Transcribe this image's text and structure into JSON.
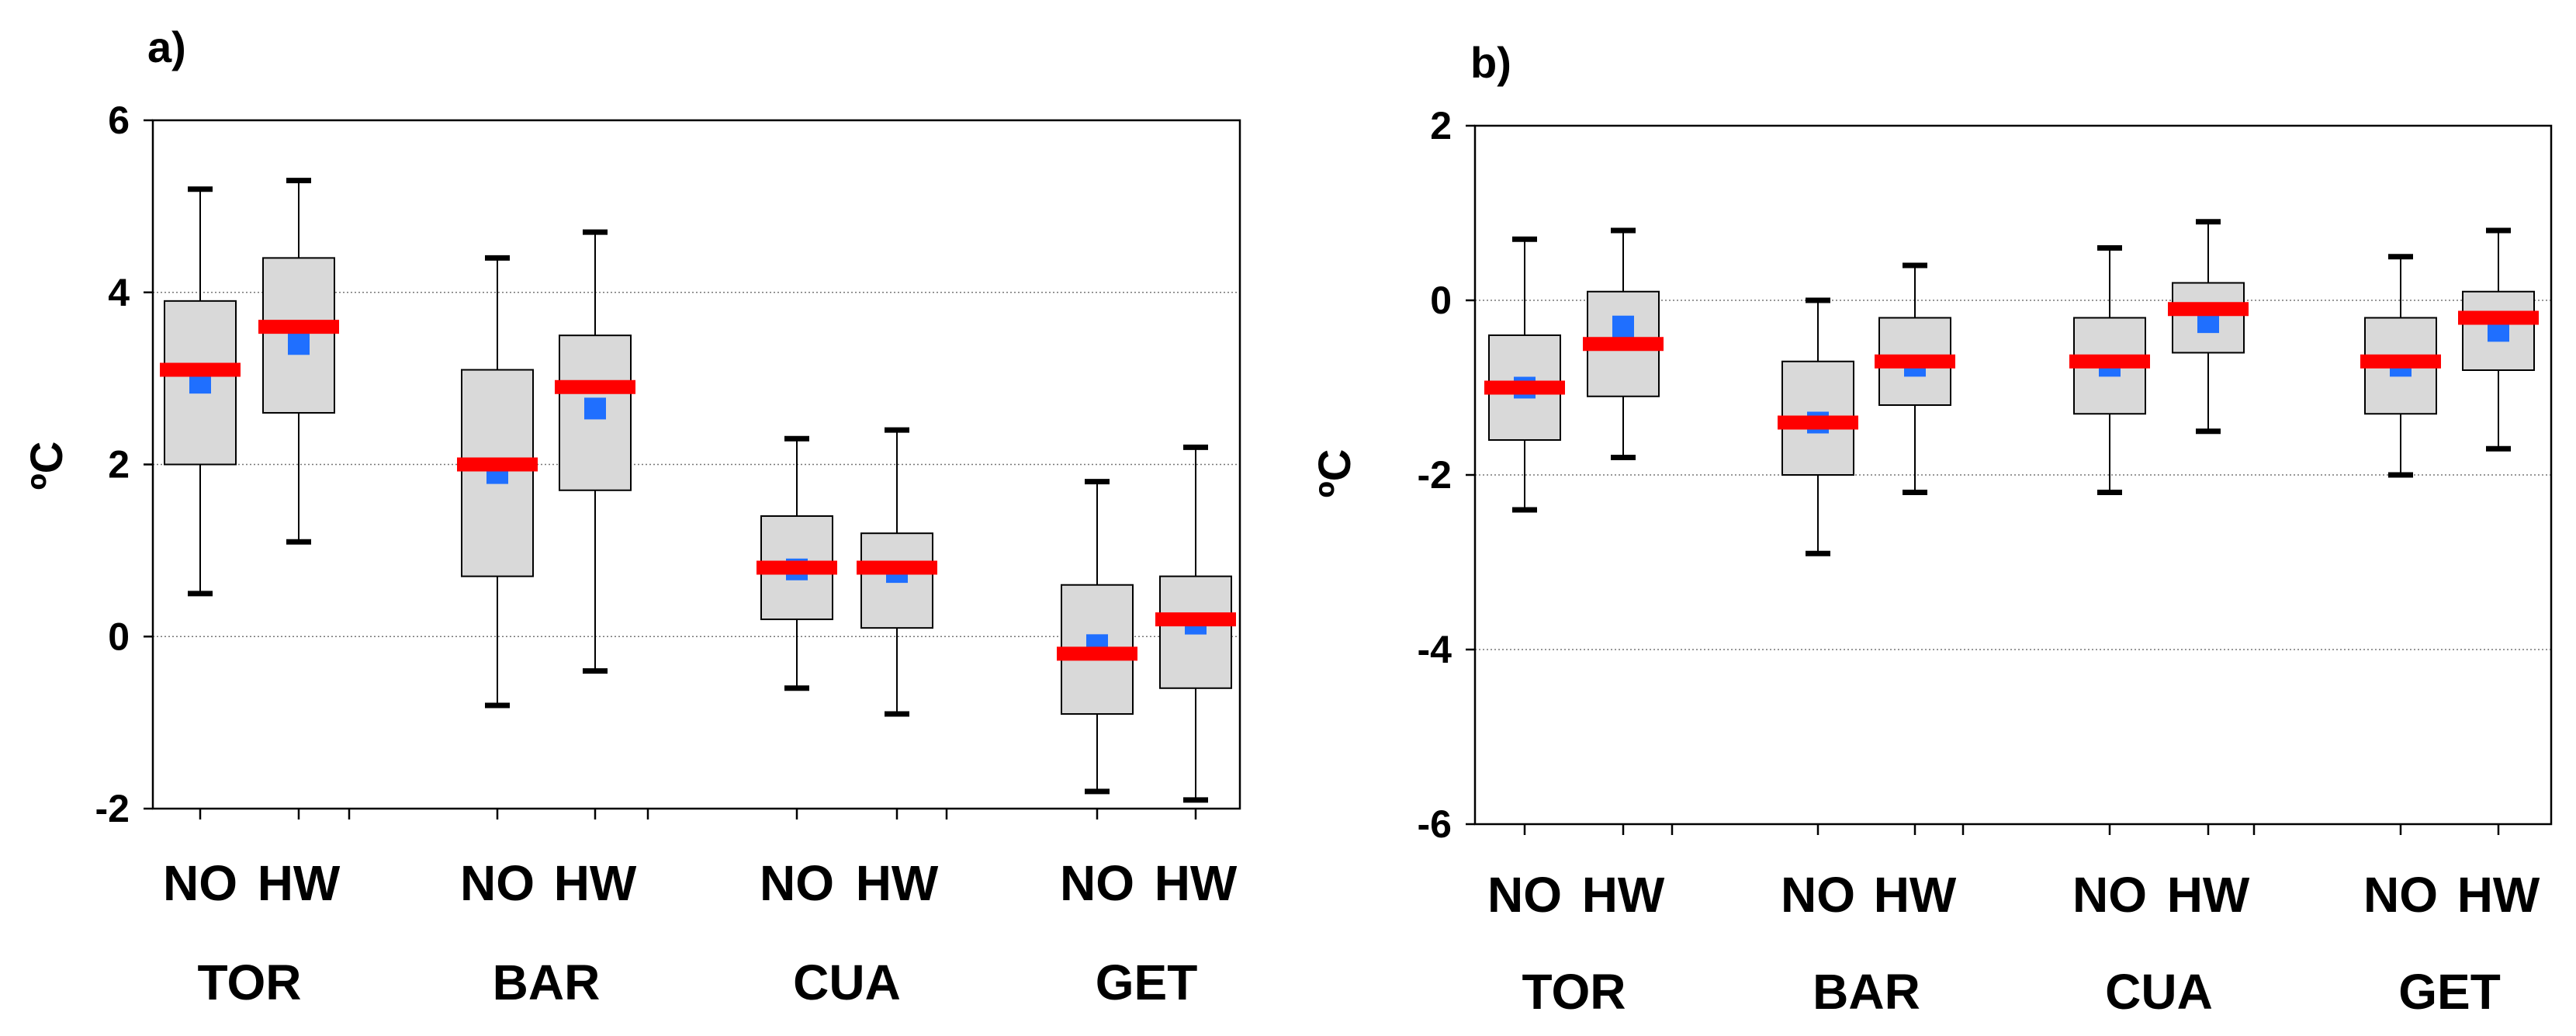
{
  "chart_data": [
    {
      "type": "box",
      "panel_label": "a)",
      "ylabel": "ºC",
      "ylim": [
        -2,
        6
      ],
      "yticks": [
        -2,
        0,
        2,
        4,
        6
      ],
      "grid": "horizontal dotted at 0, 2 and 4",
      "groups": [
        "TOR",
        "BAR",
        "CUA",
        "GET"
      ],
      "categories": [
        "NO",
        "HW"
      ],
      "colors": {
        "box_fill": "#d9d9d9",
        "median": "#ff0000",
        "mean": "#1f6fff"
      },
      "boxes": [
        {
          "group": "TOR",
          "category": "NO",
          "whisker_low": 0.5,
          "q1": 2.0,
          "median": 3.1,
          "mean": 2.95,
          "q3": 3.9,
          "whisker_high": 5.2
        },
        {
          "group": "TOR",
          "category": "HW",
          "whisker_low": 1.1,
          "q1": 2.6,
          "median": 3.6,
          "mean": 3.4,
          "q3": 4.4,
          "whisker_high": 5.3
        },
        {
          "group": "BAR",
          "category": "NO",
          "whisker_low": -0.8,
          "q1": 0.7,
          "median": 2.0,
          "mean": 1.9,
          "q3": 3.1,
          "whisker_high": 4.4
        },
        {
          "group": "BAR",
          "category": "HW",
          "whisker_low": -0.4,
          "q1": 1.7,
          "median": 2.9,
          "mean": 2.65,
          "q3": 3.5,
          "whisker_high": 4.7
        },
        {
          "group": "CUA",
          "category": "NO",
          "whisker_low": -0.6,
          "q1": 0.2,
          "median": 0.8,
          "mean": 0.78,
          "q3": 1.4,
          "whisker_high": 2.3
        },
        {
          "group": "CUA",
          "category": "HW",
          "whisker_low": -0.9,
          "q1": 0.1,
          "median": 0.8,
          "mean": 0.75,
          "q3": 1.2,
          "whisker_high": 2.4
        },
        {
          "group": "GET",
          "category": "NO",
          "whisker_low": -1.8,
          "q1": -0.9,
          "median": -0.2,
          "mean": -0.1,
          "q3": 0.6,
          "whisker_high": 1.8
        },
        {
          "group": "GET",
          "category": "HW",
          "whisker_low": -1.9,
          "q1": -0.6,
          "median": 0.2,
          "mean": 0.15,
          "q3": 0.7,
          "whisker_high": 2.2
        }
      ]
    },
    {
      "type": "box",
      "panel_label": "b)",
      "ylabel": "ºC",
      "ylim": [
        -6,
        2
      ],
      "yticks": [
        -6,
        -4,
        -2,
        0,
        2
      ],
      "grid": "horizontal dotted at -4, -2 and 0",
      "groups": [
        "TOR",
        "BAR",
        "CUA",
        "GET"
      ],
      "categories": [
        "NO",
        "HW"
      ],
      "colors": {
        "box_fill": "#d9d9d9",
        "median": "#ff0000",
        "mean": "#1f6fff"
      },
      "boxes": [
        {
          "group": "TOR",
          "category": "NO",
          "whisker_low": -2.4,
          "q1": -1.6,
          "median": -1.0,
          "mean": -1.0,
          "q3": -0.4,
          "whisker_high": 0.7
        },
        {
          "group": "TOR",
          "category": "HW",
          "whisker_low": -1.8,
          "q1": -1.1,
          "median": -0.5,
          "mean": -0.3,
          "q3": 0.1,
          "whisker_high": 0.8
        },
        {
          "group": "BAR",
          "category": "NO",
          "whisker_low": -2.9,
          "q1": -2.0,
          "median": -1.4,
          "mean": -1.4,
          "q3": -0.7,
          "whisker_high": 0.0
        },
        {
          "group": "BAR",
          "category": "HW",
          "whisker_low": -2.2,
          "q1": -1.2,
          "median": -0.7,
          "mean": -0.75,
          "q3": -0.2,
          "whisker_high": 0.4
        },
        {
          "group": "CUA",
          "category": "NO",
          "whisker_low": -2.2,
          "q1": -1.3,
          "median": -0.7,
          "mean": -0.75,
          "q3": -0.2,
          "whisker_high": 0.6
        },
        {
          "group": "CUA",
          "category": "HW",
          "whisker_low": -1.5,
          "q1": -0.6,
          "median": -0.1,
          "mean": -0.25,
          "q3": 0.2,
          "whisker_high": 0.9
        },
        {
          "group": "GET",
          "category": "NO",
          "whisker_low": -2.0,
          "q1": -1.3,
          "median": -0.7,
          "mean": -0.75,
          "q3": -0.2,
          "whisker_high": 0.5
        },
        {
          "group": "GET",
          "category": "HW",
          "whisker_low": -1.7,
          "q1": -0.8,
          "median": -0.2,
          "mean": -0.35,
          "q3": 0.1,
          "whisker_high": 0.8
        }
      ]
    }
  ]
}
